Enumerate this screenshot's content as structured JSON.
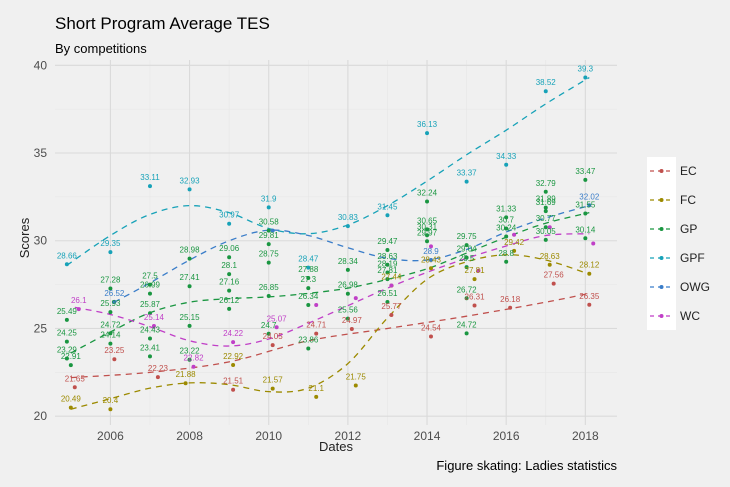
{
  "chart_data": {
    "type": "scatter",
    "title": "Short Program Average TES",
    "subtitle": "By competitions",
    "xlabel": "Dates",
    "ylabel": "Scores",
    "caption": "Figure skating: Ladies statistics",
    "xlim": [
      2004.6,
      2018.8
    ],
    "ylim": [
      19.5,
      40.3
    ],
    "x_ticks": [
      2006,
      2008,
      2010,
      2012,
      2014,
      2016,
      2018
    ],
    "y_ticks": [
      20,
      25,
      30,
      35,
      40
    ],
    "grid": true,
    "legend_position": "right",
    "trend_lines": "dashed smoothed per series",
    "series": [
      {
        "name": "EC",
        "color": "#c0504d",
        "points": [
          {
            "x": 2005.1,
            "y": 21.65
          },
          {
            "x": 2006.1,
            "y": 23.25
          },
          {
            "x": 2007.2,
            "y": 22.23
          },
          {
            "x": 2009.1,
            "y": 21.51
          },
          {
            "x": 2010.1,
            "y": 24.05
          },
          {
            "x": 2011.2,
            "y": 24.71
          },
          {
            "x": 2012.1,
            "y": 24.97
          },
          {
            "x": 2013.1,
            "y": 25.77
          },
          {
            "x": 2014.1,
            "y": 24.54
          },
          {
            "x": 2015.2,
            "y": 26.31
          },
          {
            "x": 2016.1,
            "y": 26.18
          },
          {
            "x": 2017.2,
            "y": 27.56
          },
          {
            "x": 2018.1,
            "y": 26.35
          }
        ],
        "trend": [
          [
            2005,
            22.2
          ],
          [
            2007,
            22.5
          ],
          [
            2009,
            23.1
          ],
          [
            2011,
            24.3
          ],
          [
            2013,
            25.0
          ],
          [
            2015,
            25.7
          ],
          [
            2017,
            26.5
          ],
          [
            2018.1,
            27.0
          ]
        ]
      },
      {
        "name": "FC",
        "color": "#9c8a00",
        "points": [
          {
            "x": 2005.0,
            "y": 20.49
          },
          {
            "x": 2006.0,
            "y": 20.4
          },
          {
            "x": 2007.9,
            "y": 21.88
          },
          {
            "x": 2009.1,
            "y": 22.92
          },
          {
            "x": 2010.1,
            "y": 21.57
          },
          {
            "x": 2011.2,
            "y": 21.1
          },
          {
            "x": 2012.2,
            "y": 21.75
          },
          {
            "x": 2013.1,
            "y": 27.44
          },
          {
            "x": 2014.1,
            "y": 28.43
          },
          {
            "x": 2015.2,
            "y": 27.81
          },
          {
            "x": 2016.2,
            "y": 29.42
          },
          {
            "x": 2017.1,
            "y": 28.63
          },
          {
            "x": 2018.1,
            "y": 28.12
          }
        ],
        "trend": [
          [
            2005,
            20.4
          ],
          [
            2006,
            21.0
          ],
          [
            2007,
            21.6
          ],
          [
            2008,
            21.9
          ],
          [
            2009,
            21.8
          ],
          [
            2010,
            21.4
          ],
          [
            2011,
            21.6
          ],
          [
            2012,
            23.0
          ],
          [
            2013,
            25.6
          ],
          [
            2014,
            27.8
          ],
          [
            2015,
            28.8
          ],
          [
            2016,
            29.2
          ],
          [
            2017,
            28.9
          ],
          [
            2018.1,
            28.1
          ]
        ]
      },
      {
        "name": "GP",
        "color": "#1a9641",
        "points": [
          {
            "x": 2004.9,
            "y": 25.49
          },
          {
            "x": 2004.9,
            "y": 24.25
          },
          {
            "x": 2004.9,
            "y": 23.29
          },
          {
            "x": 2005.0,
            "y": 22.91
          },
          {
            "x": 2006.0,
            "y": 27.28
          },
          {
            "x": 2006.0,
            "y": 25.93
          },
          {
            "x": 2006.0,
            "y": 24.72
          },
          {
            "x": 2006.0,
            "y": 24.14
          },
          {
            "x": 2007.0,
            "y": 27.5
          },
          {
            "x": 2007.0,
            "y": 26.99
          },
          {
            "x": 2007.0,
            "y": 25.87
          },
          {
            "x": 2007.0,
            "y": 24.43
          },
          {
            "x": 2007.0,
            "y": 23.41
          },
          {
            "x": 2008.0,
            "y": 28.98
          },
          {
            "x": 2008.0,
            "y": 27.41
          },
          {
            "x": 2008.0,
            "y": 25.15
          },
          {
            "x": 2008.0,
            "y": 23.22
          },
          {
            "x": 2009.0,
            "y": 29.06
          },
          {
            "x": 2009.0,
            "y": 28.1
          },
          {
            "x": 2009.0,
            "y": 27.16
          },
          {
            "x": 2009.0,
            "y": 26.12
          },
          {
            "x": 2010.0,
            "y": 30.58
          },
          {
            "x": 2010.0,
            "y": 29.81
          },
          {
            "x": 2010.0,
            "y": 28.75
          },
          {
            "x": 2010.0,
            "y": 26.85
          },
          {
            "x": 2010.0,
            "y": 24.7
          },
          {
            "x": 2011.0,
            "y": 27.88
          },
          {
            "x": 2011.0,
            "y": 27.3
          },
          {
            "x": 2011.0,
            "y": 26.34
          },
          {
            "x": 2011.0,
            "y": 23.86
          },
          {
            "x": 2012.0,
            "y": 28.34
          },
          {
            "x": 2012.0,
            "y": 26.98
          },
          {
            "x": 2012.0,
            "y": 25.56
          },
          {
            "x": 2013.0,
            "y": 29.47
          },
          {
            "x": 2013.0,
            "y": 28.63
          },
          {
            "x": 2013.0,
            "y": 28.19
          },
          {
            "x": 2013.0,
            "y": 27.81
          },
          {
            "x": 2013.0,
            "y": 26.51
          },
          {
            "x": 2014.0,
            "y": 32.24
          },
          {
            "x": 2014.0,
            "y": 30.65
          },
          {
            "x": 2014.0,
            "y": 30.31
          },
          {
            "x": 2014.0,
            "y": 29.97
          },
          {
            "x": 2015.0,
            "y": 29.75
          },
          {
            "x": 2015.0,
            "y": 29.04
          },
          {
            "x": 2015.0,
            "y": 28.5
          },
          {
            "x": 2015.0,
            "y": 26.72
          },
          {
            "x": 2015.0,
            "y": 24.72
          },
          {
            "x": 2016.0,
            "y": 31.33
          },
          {
            "x": 2016.0,
            "y": 30.7
          },
          {
            "x": 2016.0,
            "y": 30.24
          },
          {
            "x": 2016.0,
            "y": 28.8
          },
          {
            "x": 2017.0,
            "y": 32.79
          },
          {
            "x": 2017.0,
            "y": 31.89
          },
          {
            "x": 2017.0,
            "y": 31.69
          },
          {
            "x": 2017.0,
            "y": 30.77
          },
          {
            "x": 2017.0,
            "y": 30.05
          },
          {
            "x": 2018.0,
            "y": 33.47
          },
          {
            "x": 2018.0,
            "y": 31.55
          },
          {
            "x": 2018.0,
            "y": 30.14
          }
        ],
        "trend": [
          [
            2005,
            23.6
          ],
          [
            2006,
            24.8
          ],
          [
            2007,
            25.9
          ],
          [
            2008,
            26.5
          ],
          [
            2009,
            26.7
          ],
          [
            2010,
            26.8
          ],
          [
            2011,
            27.0
          ],
          [
            2012,
            27.3
          ],
          [
            2013,
            27.8
          ],
          [
            2014,
            28.4
          ],
          [
            2015,
            29.3
          ],
          [
            2016,
            30.2
          ],
          [
            2017,
            31.0
          ],
          [
            2018.1,
            31.6
          ]
        ]
      },
      {
        "name": "GPF",
        "color": "#17a2b8",
        "points": [
          {
            "x": 2004.9,
            "y": 28.66
          },
          {
            "x": 2006.0,
            "y": 29.35
          },
          {
            "x": 2007.0,
            "y": 33.11
          },
          {
            "x": 2008.0,
            "y": 32.93
          },
          {
            "x": 2009.0,
            "y": 30.97
          },
          {
            "x": 2010.0,
            "y": 31.9
          },
          {
            "x": 2011.0,
            "y": 28.47
          },
          {
            "x": 2012.0,
            "y": 30.83
          },
          {
            "x": 2013.0,
            "y": 31.45
          },
          {
            "x": 2014.0,
            "y": 36.13
          },
          {
            "x": 2015.0,
            "y": 33.37
          },
          {
            "x": 2016.0,
            "y": 34.33
          },
          {
            "x": 2017.0,
            "y": 38.52
          },
          {
            "x": 2018.0,
            "y": 39.3
          }
        ],
        "trend": [
          [
            2004.9,
            28.6
          ],
          [
            2006,
            30.3
          ],
          [
            2007,
            31.5
          ],
          [
            2008,
            32.0
          ],
          [
            2009,
            31.6
          ],
          [
            2010,
            30.7
          ],
          [
            2011,
            30.4
          ],
          [
            2012,
            30.9
          ],
          [
            2013,
            32.0
          ],
          [
            2014,
            33.4
          ],
          [
            2015,
            34.9
          ],
          [
            2016,
            36.3
          ],
          [
            2017,
            37.8
          ],
          [
            2018.1,
            39.3
          ]
        ]
      },
      {
        "name": "OWG",
        "color": "#3a7dc9",
        "points": [
          {
            "x": 2006.1,
            "y": 26.52
          },
          {
            "x": 2010.1,
            "y": 30.58
          },
          {
            "x": 2014.1,
            "y": 28.9
          },
          {
            "x": 2018.1,
            "y": 32.02
          }
        ],
        "trend": [
          [
            2006.1,
            26.5
          ],
          [
            2007,
            27.6
          ],
          [
            2008,
            28.9
          ],
          [
            2009,
            30.0
          ],
          [
            2010,
            30.6
          ],
          [
            2011,
            30.3
          ],
          [
            2012,
            29.6
          ],
          [
            2013,
            29.0
          ],
          [
            2014,
            28.9
          ],
          [
            2015,
            29.5
          ],
          [
            2016,
            30.5
          ],
          [
            2017,
            31.3
          ],
          [
            2018.1,
            32.0
          ]
        ]
      },
      {
        "name": "WC",
        "color": "#c03fc7",
        "points": [
          {
            "x": 2005.2,
            "y": 26.1
          },
          {
            "x": 2007.1,
            "y": 25.14
          },
          {
            "x": 2008.1,
            "y": 22.82
          },
          {
            "x": 2009.1,
            "y": 24.22
          },
          {
            "x": 2010.2,
            "y": 25.07
          },
          {
            "x": 2011.2,
            "y": 26.34
          },
          {
            "x": 2012.2,
            "y": 26.73
          },
          {
            "x": 2013.1,
            "y": 27.45
          },
          {
            "x": 2014.1,
            "y": 29.68
          },
          {
            "x": 2015.3,
            "y": 28.3
          },
          {
            "x": 2016.2,
            "y": 30.34
          },
          {
            "x": 2017.1,
            "y": 30.77
          },
          {
            "x": 2018.2,
            "y": 29.84
          }
        ],
        "trend": [
          [
            2005.1,
            26.2
          ],
          [
            2006,
            25.8
          ],
          [
            2007,
            25.1
          ],
          [
            2008,
            24.3
          ],
          [
            2009,
            24.0
          ],
          [
            2010,
            24.4
          ],
          [
            2011,
            25.3
          ],
          [
            2012,
            26.3
          ],
          [
            2013,
            27.3
          ],
          [
            2014,
            28.2
          ],
          [
            2015,
            29.0
          ],
          [
            2016,
            29.7
          ],
          [
            2017,
            30.3
          ],
          [
            2018.1,
            30.4
          ]
        ]
      }
    ],
    "labels": [
      {
        "s": "EC",
        "x": 2005.1,
        "y": 21.65,
        "t": "21.65"
      },
      {
        "s": "EC",
        "x": 2006.1,
        "y": 23.25,
        "t": "23.25"
      },
      {
        "s": "EC",
        "x": 2007.2,
        "y": 22.23,
        "t": "22.23"
      },
      {
        "s": "EC",
        "x": 2009.1,
        "y": 21.51,
        "t": "21.51"
      },
      {
        "s": "EC",
        "x": 2010.1,
        "y": 24.05,
        "t": "24.05"
      },
      {
        "s": "EC",
        "x": 2011.2,
        "y": 24.71,
        "t": "24.71"
      },
      {
        "s": "EC",
        "x": 2012.1,
        "y": 24.97,
        "t": "24.97"
      },
      {
        "s": "EC",
        "x": 2013.1,
        "y": 25.77,
        "t": "25.77"
      },
      {
        "s": "EC",
        "x": 2014.1,
        "y": 24.54,
        "t": "24.54"
      },
      {
        "s": "EC",
        "x": 2015.2,
        "y": 26.31,
        "t": "26.31"
      },
      {
        "s": "EC",
        "x": 2016.1,
        "y": 26.18,
        "t": "26.18"
      },
      {
        "s": "EC",
        "x": 2017.2,
        "y": 27.56,
        "t": "27.56"
      },
      {
        "s": "EC",
        "x": 2018.1,
        "y": 26.35,
        "t": "26.35"
      },
      {
        "s": "FC",
        "x": 2005.0,
        "y": 20.49,
        "t": "20.49"
      },
      {
        "s": "FC",
        "x": 2006.0,
        "y": 20.4,
        "t": "20.4"
      },
      {
        "s": "FC",
        "x": 2007.9,
        "y": 21.88,
        "t": "21.88"
      },
      {
        "s": "FC",
        "x": 2009.1,
        "y": 22.92,
        "t": "22.92"
      },
      {
        "s": "FC",
        "x": 2010.1,
        "y": 21.57,
        "t": "21.57"
      },
      {
        "s": "FC",
        "x": 2011.2,
        "y": 21.1,
        "t": "21.1"
      },
      {
        "s": "FC",
        "x": 2012.2,
        "y": 21.75,
        "t": "21.75"
      },
      {
        "s": "FC",
        "x": 2013.1,
        "y": 27.44,
        "t": "27.44"
      },
      {
        "s": "FC",
        "x": 2014.1,
        "y": 28.43,
        "t": "28.43"
      },
      {
        "s": "FC",
        "x": 2015.2,
        "y": 27.81,
        "t": "27.81"
      },
      {
        "s": "FC",
        "x": 2016.2,
        "y": 29.42,
        "t": "29.42"
      },
      {
        "s": "FC",
        "x": 2017.1,
        "y": 28.63,
        "t": "28.63"
      },
      {
        "s": "FC",
        "x": 2018.1,
        "y": 28.12,
        "t": "28.12"
      },
      {
        "s": "WC",
        "x": 2005.2,
        "y": 26.1,
        "t": "26.1"
      },
      {
        "s": "WC",
        "x": 2007.1,
        "y": 25.14,
        "t": "25.14"
      },
      {
        "s": "WC",
        "x": 2008.1,
        "y": 22.82,
        "t": "22.82"
      },
      {
        "s": "WC",
        "x": 2009.1,
        "y": 24.22,
        "t": "24.22"
      },
      {
        "s": "WC",
        "x": 2010.2,
        "y": 25.07,
        "t": "25.07"
      },
      {
        "s": "OWG",
        "x": 2006.1,
        "y": 26.52,
        "t": "26.52"
      },
      {
        "s": "OWG",
        "x": 2014.1,
        "y": 28.9,
        "t": "28.9"
      },
      {
        "s": "OWG",
        "x": 2018.1,
        "y": 32.02,
        "t": "32.02"
      }
    ]
  }
}
